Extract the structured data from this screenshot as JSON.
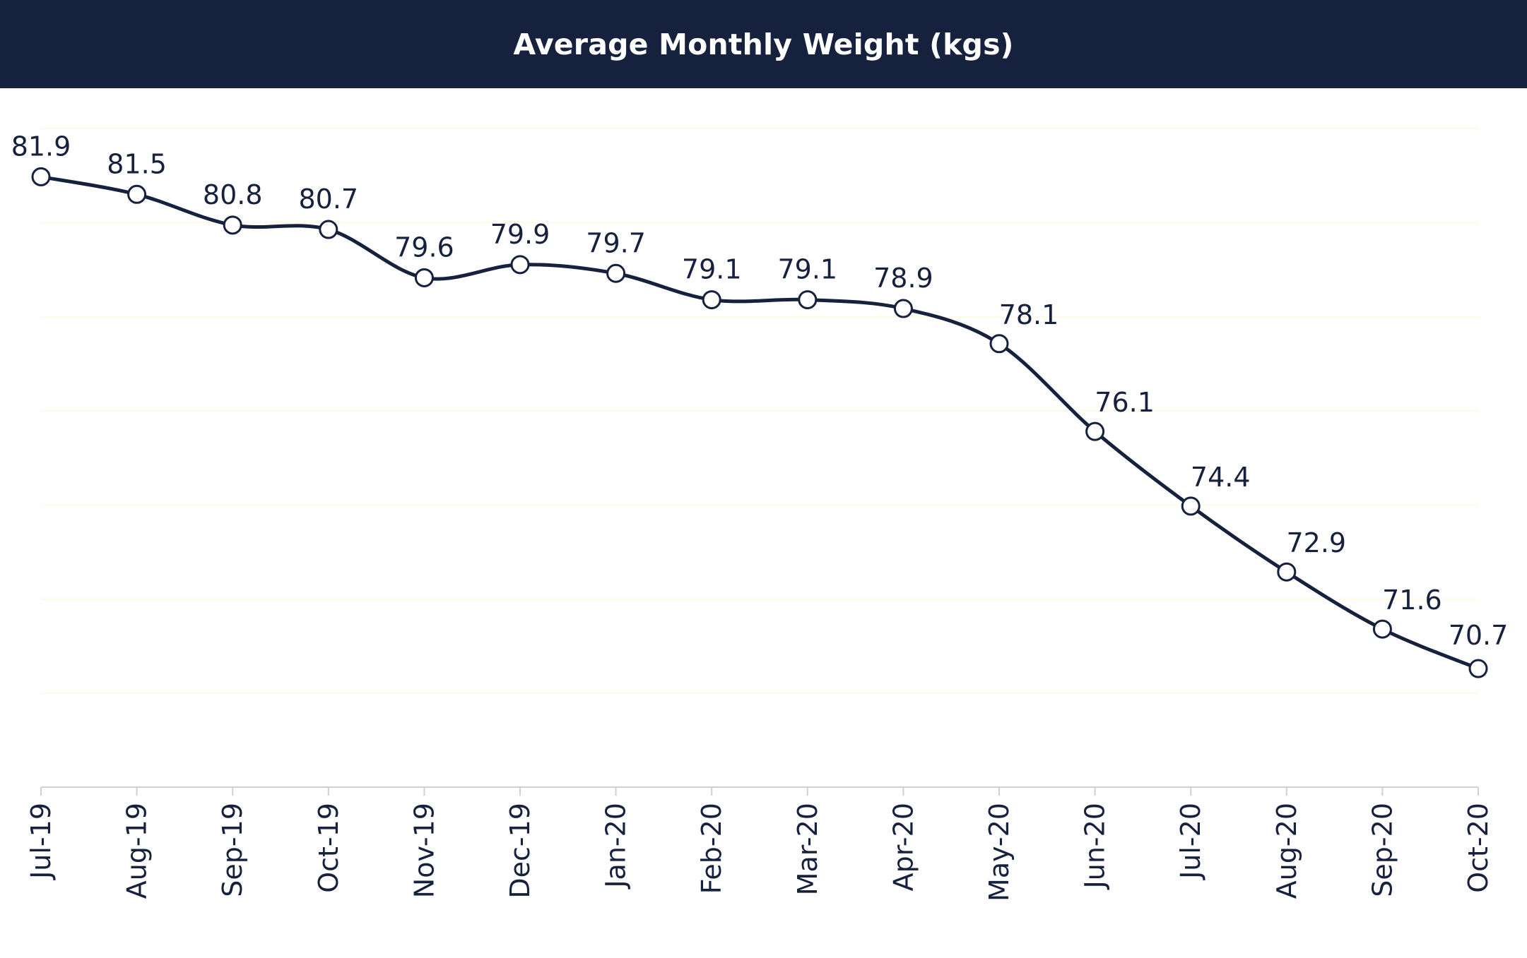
{
  "header": {
    "title": "Average Monthly Weight (kgs)"
  },
  "colors": {
    "header_background": "#16213e",
    "line": "#16213e",
    "marker_fill": "#ffffff",
    "gridline": "#fdfbe8",
    "axis": "#d0d0d0"
  },
  "chart_data": {
    "type": "line",
    "title": "Average Monthly Weight (kgs)",
    "xlabel": "",
    "ylabel": "",
    "categories": [
      "Jul-19",
      "Aug-19",
      "Sep-19",
      "Oct-19",
      "Nov-19",
      "Dec-19",
      "Jan-20",
      "Feb-20",
      "Mar-20",
      "Apr-20",
      "May-20",
      "Jun-20",
      "Jul-20",
      "Aug-20",
      "Sep-20",
      "Oct-20"
    ],
    "series": [
      {
        "values": [
          81.9,
          81.5,
          80.8,
          80.7,
          79.6,
          79.9,
          79.7,
          79.1,
          79.1,
          78.9,
          78.1,
          76.1,
          74.4,
          72.9,
          71.6,
          70.7
        ]
      }
    ],
    "ylim": [
      68,
      83
    ],
    "grid": true,
    "smooth": true,
    "markers": "open-circle",
    "data_labels": true,
    "legend": "none",
    "y_axis_visible": false
  }
}
